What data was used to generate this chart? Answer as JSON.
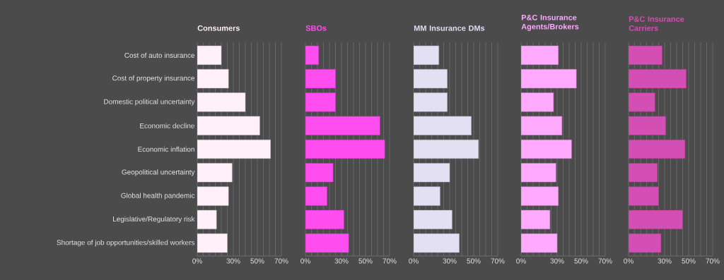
{
  "chart_data": [
    {
      "type": "bar",
      "orientation": "horizontal",
      "title": "Consumers",
      "color": "#fff0fa",
      "grid": "x",
      "categories": [
        "Cost of auto insurance",
        "Cost of property insurance",
        "Domestic political uncertainty",
        "Economic decline",
        "Economic inflation",
        "Geopolitical uncertainty",
        "Global health pandemic",
        "Legislative/Regulatory risk",
        "Shortage of job opportunities/skilled workers"
      ],
      "values": [
        20,
        26,
        40,
        52,
        61,
        29,
        26,
        16,
        25
      ],
      "xlim": [
        0,
        70
      ],
      "xticks": [
        {
          "value": 0,
          "label": "0%"
        },
        {
          "value": 5,
          "label": null
        },
        {
          "value": 10,
          "label": null
        },
        {
          "value": 15,
          "label": null
        },
        {
          "value": 20,
          "label": null
        },
        {
          "value": 25,
          "label": null
        },
        {
          "value": 30,
          "label": "30%"
        },
        {
          "value": 35,
          "label": null
        },
        {
          "value": 40,
          "label": null
        },
        {
          "value": 45,
          "label": null
        },
        {
          "value": 50,
          "label": "50%"
        },
        {
          "value": 55,
          "label": null
        },
        {
          "value": 60,
          "label": null
        },
        {
          "value": 65,
          "label": null
        },
        {
          "value": 70,
          "label": "70%"
        }
      ]
    },
    {
      "type": "bar",
      "orientation": "horizontal",
      "title": "SBOs",
      "color": "#ff4df0",
      "grid": "x",
      "tick_labels": "x",
      "categories": [
        null,
        null,
        null,
        null,
        null,
        null,
        null,
        null,
        null
      ],
      "values": [
        11,
        25,
        25,
        62,
        66,
        23,
        18,
        32,
        36
      ],
      "xlim": [
        0,
        70
      ],
      "xticks": [
        {
          "value": 0,
          "label": "0%"
        },
        {
          "value": 5,
          "label": null
        },
        {
          "value": 10,
          "label": null
        },
        {
          "value": 15,
          "label": null
        },
        {
          "value": 20,
          "label": null
        },
        {
          "value": 25,
          "label": null
        },
        {
          "value": 30,
          "label": "30%"
        },
        {
          "value": 35,
          "label": null
        },
        {
          "value": 40,
          "label": null
        },
        {
          "value": 45,
          "label": null
        },
        {
          "value": 50,
          "label": "50%"
        },
        {
          "value": 55,
          "label": null
        },
        {
          "value": 60,
          "label": null
        },
        {
          "value": 65,
          "label": null
        },
        {
          "value": 70,
          "label": "70%"
        }
      ]
    },
    {
      "type": "bar",
      "orientation": "horizontal",
      "title": "MM Insurance DMs",
      "color": "#e4e0f4",
      "grid": "x",
      "tick_labels": "x",
      "categories": [
        null,
        null,
        null,
        null,
        null,
        null,
        null,
        null,
        null
      ],
      "values": [
        21,
        28,
        28,
        48,
        54,
        30,
        22,
        32,
        38
      ],
      "xlim": [
        0,
        70
      ],
      "xticks": [
        {
          "value": 0,
          "label": "0%"
        },
        {
          "value": 5,
          "label": null
        },
        {
          "value": 10,
          "label": null
        },
        {
          "value": 15,
          "label": null
        },
        {
          "value": 20,
          "label": null
        },
        {
          "value": 25,
          "label": null
        },
        {
          "value": 30,
          "label": "30%"
        },
        {
          "value": 35,
          "label": null
        },
        {
          "value": 40,
          "label": null
        },
        {
          "value": 45,
          "label": null
        },
        {
          "value": 50,
          "label": "50%"
        },
        {
          "value": 55,
          "label": null
        },
        {
          "value": 60,
          "label": null
        },
        {
          "value": 65,
          "label": null
        },
        {
          "value": 70,
          "label": "70%"
        }
      ]
    },
    {
      "type": "bar",
      "orientation": "horizontal",
      "title": "P&C Insurance Agents/Brokers",
      "color": "#ffaaff",
      "grid": "x",
      "tick_labels": "x",
      "categories": [
        null,
        null,
        null,
        null,
        null,
        null,
        null,
        null,
        null
      ],
      "values": [
        31,
        46,
        27,
        34,
        42,
        29,
        31,
        24,
        30
      ],
      "xlim": [
        0,
        70
      ],
      "xticks": [
        {
          "value": 0,
          "label": "0%"
        },
        {
          "value": 5,
          "label": null
        },
        {
          "value": 10,
          "label": null
        },
        {
          "value": 15,
          "label": null
        },
        {
          "value": 20,
          "label": null
        },
        {
          "value": 25,
          "label": null
        },
        {
          "value": 30,
          "label": "30%"
        },
        {
          "value": 35,
          "label": null
        },
        {
          "value": 40,
          "label": null
        },
        {
          "value": 45,
          "label": null
        },
        {
          "value": 50,
          "label": "50%"
        },
        {
          "value": 55,
          "label": null
        },
        {
          "value": 60,
          "label": null
        },
        {
          "value": 65,
          "label": null
        },
        {
          "value": 70,
          "label": "70%"
        }
      ]
    },
    {
      "type": "bar",
      "orientation": "horizontal",
      "title": "P&C Insurance Carriers",
      "color": "#d44fb4",
      "grid": "x",
      "tick_labels": "x",
      "categories": [
        null,
        null,
        null,
        null,
        null,
        null,
        null,
        null,
        null
      ],
      "values": [
        28,
        48,
        22,
        31,
        47,
        24,
        25,
        45,
        27
      ],
      "xlim": [
        0,
        70
      ],
      "xticks": [
        {
          "value": 0,
          "label": "0%"
        },
        {
          "value": 5,
          "label": null
        },
        {
          "value": 10,
          "label": null
        },
        {
          "value": 15,
          "label": null
        },
        {
          "value": 20,
          "label": null
        },
        {
          "value": 25,
          "label": null
        },
        {
          "value": 30,
          "label": "30%"
        },
        {
          "value": 35,
          "label": null
        },
        {
          "value": 40,
          "label": null
        },
        {
          "value": 45,
          "label": null
        },
        {
          "value": 50,
          "label": "50%"
        },
        {
          "value": 55,
          "label": null
        },
        {
          "value": 60,
          "label": null
        },
        {
          "value": 65,
          "label": null
        },
        {
          "value": 70,
          "label": "70%"
        }
      ]
    }
  ]
}
